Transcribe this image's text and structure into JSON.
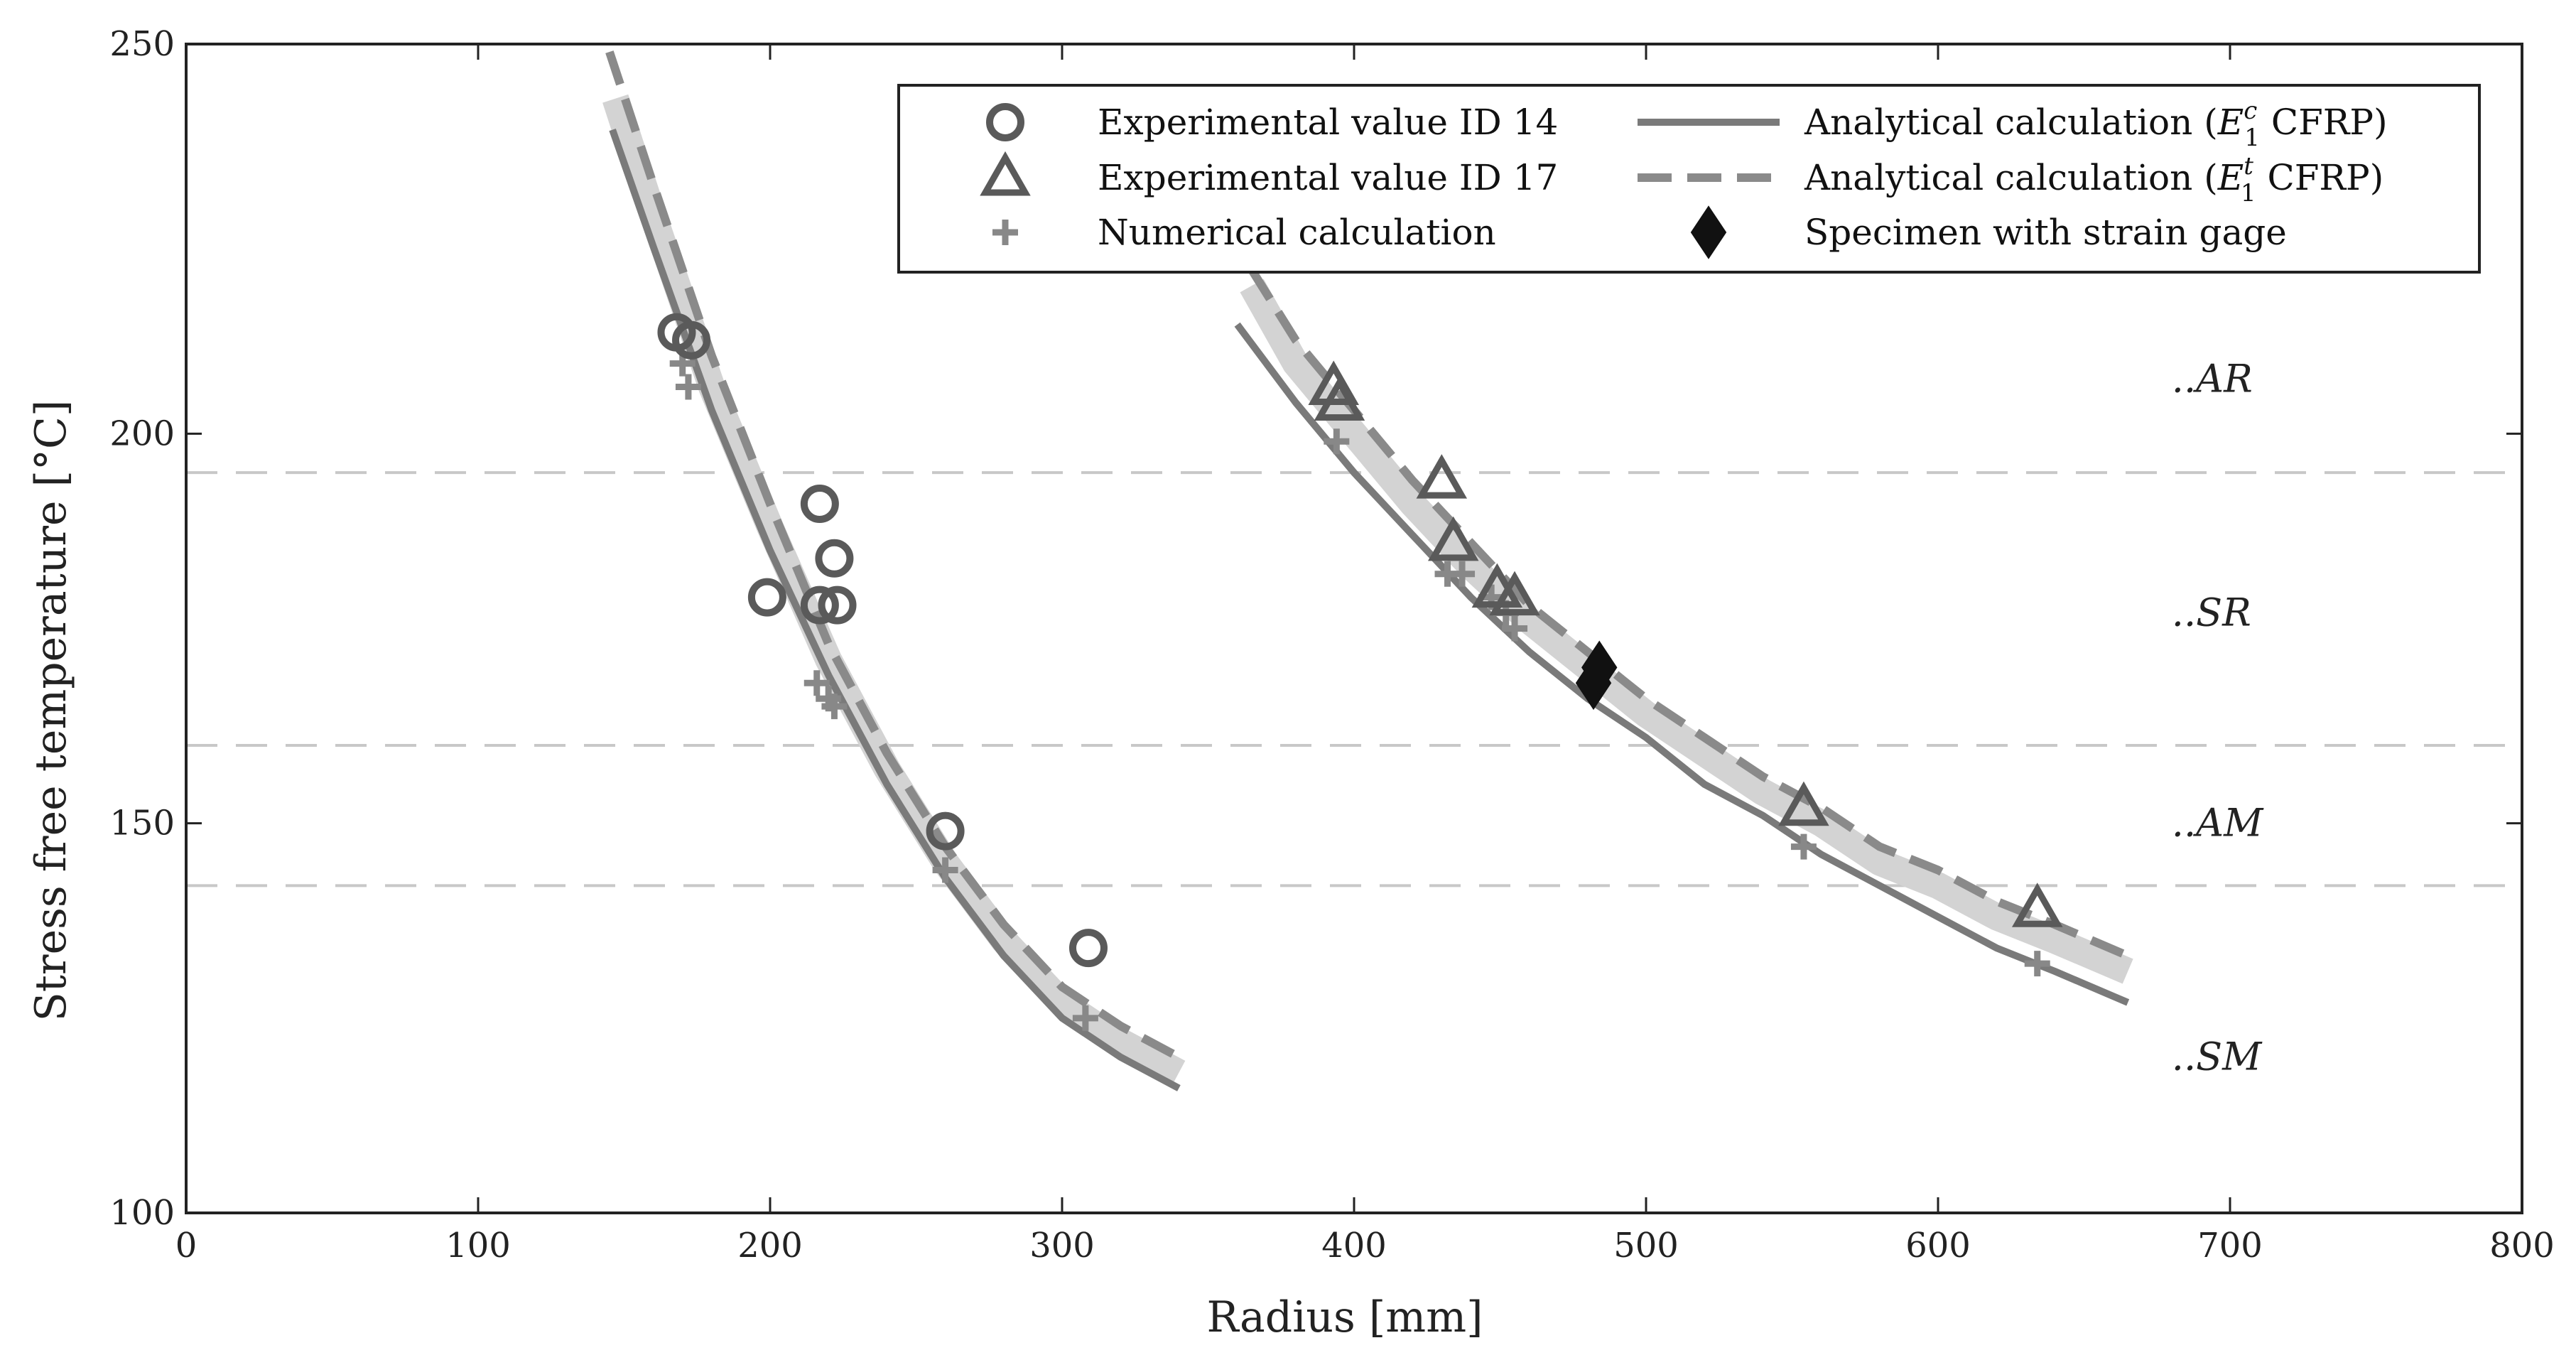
{
  "chart_data": {
    "type": "scatter",
    "xlabel": "Radius [mm]",
    "ylabel": "Stress free temperature [°C]",
    "xlim": [
      0,
      800
    ],
    "ylim": [
      100,
      250
    ],
    "xticks": [
      0,
      100,
      200,
      300,
      400,
      500,
      600,
      700,
      800
    ],
    "yticks": [
      100,
      150,
      200,
      250
    ],
    "grid": false,
    "legend_placement": "top-right",
    "legend": [
      {
        "key": "exp14",
        "label": "Experimental value ID 14"
      },
      {
        "key": "exp17",
        "label": "Experimental value ID 17"
      },
      {
        "key": "num",
        "label": "Numerical calculation"
      },
      {
        "key": "anaC",
        "label": "Analytical calculation (",
        "math": "E",
        "sub": "1",
        "sup": "c",
        "suffix": " CFRP)"
      },
      {
        "key": "anaT",
        "label": "Analytical calculation (",
        "math": "E",
        "sub": "1",
        "sup": "t",
        "suffix": " CFRP)"
      },
      {
        "key": "gage",
        "label": "Specimen with strain gage"
      }
    ],
    "reference_lines": [
      {
        "y": 195,
        "label": "..AR",
        "label_y": 207
      },
      {
        "y": 160,
        "label": "..SR",
        "label_y": 177
      },
      {
        "y": 142,
        "label": "..AM",
        "label_y": 150
      },
      {
        "y": null,
        "label": "..SM",
        "label_y": 120
      }
    ],
    "series": [
      {
        "name": "Experimental value ID 14",
        "marker": "circle",
        "x": [
          168,
          173,
          199,
          217,
          217,
          222,
          223,
          260,
          309
        ],
        "y": [
          213,
          212,
          179,
          191,
          178,
          184,
          178,
          149,
          134
        ]
      },
      {
        "name": "Experimental value ID 17",
        "marker": "triangle",
        "x": [
          393,
          395,
          430,
          434,
          449,
          455,
          554,
          634
        ],
        "y": [
          206,
          204,
          194,
          186,
          180,
          179,
          152,
          139
        ]
      },
      {
        "name": "Numerical calculation",
        "marker": "plus",
        "x": [
          170,
          172,
          216,
          220,
          222,
          260,
          308,
          394,
          432,
          437,
          447,
          452,
          455,
          554,
          634
        ],
        "y": [
          209,
          206,
          168,
          166,
          165,
          144,
          125,
          199,
          182,
          182,
          179,
          177,
          175,
          147,
          132
        ]
      },
      {
        "name": "Specimen with strain gage",
        "marker": "diamond",
        "x": [
          482,
          484
        ],
        "y": [
          168,
          170
        ]
      }
    ],
    "curves": [
      {
        "name": "Analytical calculation (E1c CFRP)",
        "style": "solid",
        "segments": [
          {
            "x": [
              146,
              160,
              180,
              200,
              220,
              240,
              260,
              280,
              300,
              320,
              340
            ],
            "y": [
              239,
              224,
              203,
              185,
              169,
              155,
              143,
              133,
              125,
              120,
              116
            ]
          },
          {
            "x": [
              360,
              380,
              400,
              420,
              440,
              460,
              480,
              500,
              520,
              540,
              560,
              580,
              600,
              620,
              640,
              665
            ],
            "y": [
              214,
              204,
              195,
              187,
              179,
              172,
              166,
              161,
              155,
              151,
              146,
              142,
              138,
              134,
              131,
              127
            ]
          }
        ]
      },
      {
        "name": "Analytical calculation (E1t CFRP)",
        "style": "dashed",
        "segments": [
          {
            "x": [
              145,
              160,
              180,
              200,
              220,
              240,
              260,
              280,
              300,
              320,
              340
            ],
            "y": [
              249,
              232,
              210,
              191,
              173,
              159,
              147,
              137,
              129,
              124,
              120
            ]
          },
          {
            "x": [
              365,
              380,
              400,
              420,
              440,
              460,
              480,
              500,
              520,
              540,
              560,
              580,
              600,
              620,
              640,
              665
            ],
            "y": [
              221,
              212,
              203,
              194,
              186,
              178,
              172,
              166,
              161,
              156,
              152,
              147,
              144,
              140,
              137,
              133
            ]
          }
        ]
      },
      {
        "name": "",
        "style": "band",
        "segments": [
          {
            "x": [
              147,
              160,
              180,
              200,
              220,
              240,
              260,
              280,
              300,
              320,
              340
            ],
            "y": [
              243,
              228,
              206,
              188,
              171,
              157,
              145,
              135,
              127,
              122,
              118
            ]
          },
          {
            "x": [
              365,
              380,
              400,
              420,
              440,
              460,
              480,
              500,
              520,
              540,
              560,
              580,
              600,
              620,
              640,
              665
            ],
            "y": [
              219,
              209,
              200,
              191,
              183,
              176,
              170,
              164,
              159,
              154,
              150,
              145,
              142,
              138,
              135,
              131
            ]
          }
        ]
      }
    ],
    "colors": {
      "solid": "#7a7a7a",
      "dashed": "#8a8a8a",
      "band": "#d3d3d3",
      "marker": "#5a5a5a",
      "plus": "#888888",
      "diamond": "#111111",
      "refline": "#c8c8c8",
      "frame": "#222222"
    }
  }
}
